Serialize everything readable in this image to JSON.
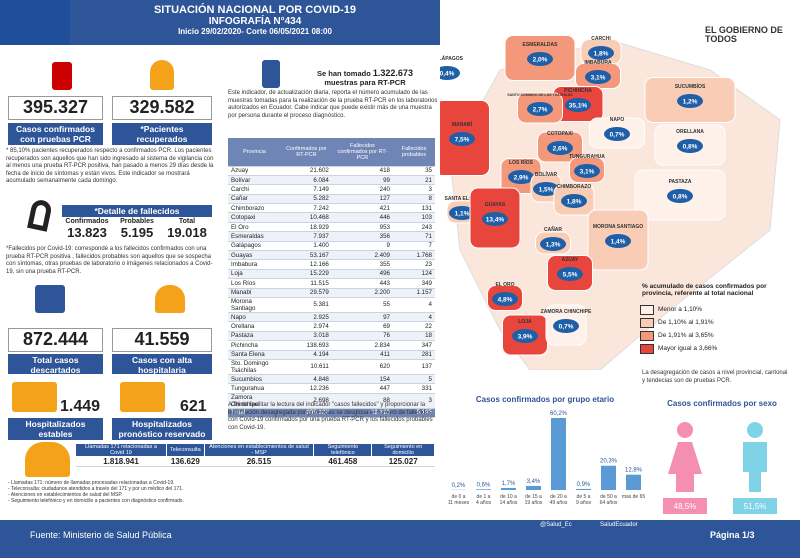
{
  "header": {
    "title": "SITUACIÓN NACIONAL POR  COVID-19",
    "subtitle": "INFOGRAFÍA N°434",
    "period": "Inicio 29/02/2020- Corte 06/05/2021 08:00",
    "logo": "EL GOBIERNO DE TODOS"
  },
  "stats": {
    "confirmed": {
      "value": "395.327",
      "label": "Casos confirmados con pruebas PCR"
    },
    "recovered": {
      "value": "329.582",
      "label": "*Pacientes recuperados"
    },
    "recovered_note": "* 85,10% pacientes recuperados respecto a confirmados PCR. Los pacientes recuperados son aquellos que han sido ingresado al sistema de vigilancia con al menos una prueba RT-PCR positiva, han pasado a menos 29 días desde la fecha de inicio de síntomas y están vivos. Este indicador se mostrará acumulado semanalmente cada domingo.",
    "deaths": {
      "title": "*Detalle de fallecidos",
      "items": [
        {
          "label": "Confirmados",
          "value": "13.823"
        },
        {
          "label": "Probables",
          "value": "5.195"
        },
        {
          "label": "Total",
          "value": "19.018"
        }
      ]
    },
    "deaths_note": "*Fallecidos por Covid-19: corresponde a los fallecidos confirmados con una prueba RT-PCR positiva , fallecidos probables son aquellos que se sospecha con síntomas, otras pruebas de laboratorio o imágenes relacionados a Covid-19, sin una prueba RT-PCR.",
    "discarded": {
      "value": "872.444",
      "label": "Total casos descartados"
    },
    "discharged": {
      "value": "41.559",
      "label": "Casos con alta hospitalaria"
    },
    "stable": {
      "value": "1.449",
      "label": "Hospitalizados estables"
    },
    "reserved": {
      "value": "621",
      "label": "Hospitalizados pronóstico reservado"
    }
  },
  "samples": {
    "prefix": "Se han tomado",
    "value": "1.322.673",
    "suffix": "muestras  para RT-PCR",
    "note": "Este indicador, de actualización diaria, reporta el número acumulado de las muestras tomadas para la realización de la prueba RT-PCR en los laboratorios autorizados en Ecuador. Cabe indicar que puede existir más de una muestra por persona durante el proceso diagnóstico."
  },
  "table": {
    "header": [
      "Provincia",
      "Confirmados por RT-PCR",
      "Fallecidos confirmados por RT-PCR",
      "Fallecidos probables"
    ],
    "rows": [
      [
        "Azuay",
        "21.602",
        "418",
        "35"
      ],
      [
        "Bolívar",
        "6.084",
        "99",
        "21"
      ],
      [
        "Carchi",
        "7.149",
        "240",
        "3"
      ],
      [
        "Cañar",
        "5.282",
        "127",
        "8"
      ],
      [
        "Chimborazo",
        "7.242",
        "421",
        "131"
      ],
      [
        "Cotopaxi",
        "10.468",
        "446",
        "103"
      ],
      [
        "El Oro",
        "18.929",
        "953",
        "243"
      ],
      [
        "Esmeraldas",
        "7.937",
        "356",
        "71"
      ],
      [
        "Galápagos",
        "1.400",
        "9",
        "7"
      ],
      [
        "Guayas",
        "53.167",
        "2.409",
        "1.768"
      ],
      [
        "Imbabura",
        "12.166",
        "355",
        "23"
      ],
      [
        "Loja",
        "15.229",
        "496",
        "124"
      ],
      [
        "Los Ríos",
        "11.515",
        "443",
        "349"
      ],
      [
        "Manabí",
        "29.579",
        "2.200",
        "1.157"
      ],
      [
        "Morona Santiago",
        "5.381",
        "55",
        "4"
      ],
      [
        "Napo",
        "2.925",
        "97",
        "4"
      ],
      [
        "Orellana",
        "2.974",
        "69",
        "22"
      ],
      [
        "Pastaza",
        "3.018",
        "76",
        "18"
      ],
      [
        "Pichincha",
        "138.693",
        "2.834",
        "347"
      ],
      [
        "Santa Elena",
        "4.194",
        "411",
        "281"
      ],
      [
        "Sto. Domingo Tsáchilas",
        "10.611",
        "620",
        "137"
      ],
      [
        "Sucumbíos",
        "4.848",
        "154",
        "5"
      ],
      [
        "Tungurahua",
        "12.236",
        "447",
        "331"
      ],
      [
        "Zamora Chinchipe",
        "2.698",
        "88",
        "3"
      ]
    ],
    "total": [
      "Total",
      "395.327",
      "13.823",
      "5.195"
    ]
  },
  "deaths_info": "A fin de facilitar la lectura del indicador \"casos fallecidos\" y proporcionar la información desagregada por provincias se desglosa el número de fallecidos con Covid-19 confirmados por una prueba RT-PCR y los fallecidos probables con Covid-19.",
  "map": {
    "provinces": [
      {
        "name": "GALÁPAGOS",
        "pct": "0,4%",
        "color": "#fdf1ea"
      },
      {
        "name": "ESMERALDAS",
        "pct": "2,0%",
        "color": "#f3987a"
      },
      {
        "name": "CARCHI",
        "pct": "1,8%",
        "color": "#f9cdb5"
      },
      {
        "name": "IMBABURA",
        "pct": "3,1%",
        "color": "#f3987a"
      },
      {
        "name": "SUCUMBÍOS",
        "pct": "1,2%",
        "color": "#f9cdb5"
      },
      {
        "name": "PICHINCHA",
        "pct": "35,1%",
        "color": "#e8453c"
      },
      {
        "name": "SANTO DOMINGO DE LOS TSÁCHILAS",
        "pct": "2,7%",
        "color": "#f3987a"
      },
      {
        "name": "NAPO",
        "pct": "0,7%",
        "color": "#fdf1ea"
      },
      {
        "name": "ORELLANA",
        "pct": "0,8%",
        "color": "#fdf1ea"
      },
      {
        "name": "MANABÍ",
        "pct": "7,5%",
        "color": "#e8453c"
      },
      {
        "name": "COTOPAXI",
        "pct": "2,6%",
        "color": "#f3987a"
      },
      {
        "name": "LOS RÍOS",
        "pct": "2,9%",
        "color": "#f3987a"
      },
      {
        "name": "TUNGURAHUA",
        "pct": "3,1%",
        "color": "#f3987a"
      },
      {
        "name": "BOLÍVAR",
        "pct": "1,5%",
        "color": "#f9cdb5"
      },
      {
        "name": "CHIMBORAZO",
        "pct": "1,8%",
        "color": "#f9cdb5"
      },
      {
        "name": "PASTAZA",
        "pct": "0,8%",
        "color": "#fdf1ea"
      },
      {
        "name": "SANTA ELENA",
        "pct": "1,1%",
        "color": "#f9cdb5"
      },
      {
        "name": "GUAYAS",
        "pct": "13,4%",
        "color": "#e8453c"
      },
      {
        "name": "CAÑAR",
        "pct": "1,3%",
        "color": "#f9cdb5"
      },
      {
        "name": "MORONA SANTIAGO",
        "pct": "1,4%",
        "color": "#f9cdb5"
      },
      {
        "name": "AZUAY",
        "pct": "5,5%",
        "color": "#e8453c"
      },
      {
        "name": "EL ORO",
        "pct": "4,8%",
        "color": "#e8453c"
      },
      {
        "name": "LOJA",
        "pct": "3,9%",
        "color": "#e8453c"
      },
      {
        "name": "ZAMORA CHINCHIPE",
        "pct": "0,7%",
        "color": "#fdf1ea"
      }
    ],
    "legend_title": "% acumulado de casos confirmados por provincia, referente al total nacional",
    "legend": [
      {
        "label": "Menor a 1,10%",
        "color": "#fdf1ea"
      },
      {
        "label": "De 1,10% al 1,91%",
        "color": "#f9cdb5"
      },
      {
        "label": "De 1,91% al 3,65%",
        "color": "#f3987a"
      },
      {
        "label": "Mayor igual a 3,66%",
        "color": "#e8453c"
      }
    ],
    "note": "La desagregación de casos a nivel provincial, cantonal y tendecias son de  pruebas PCR."
  },
  "chart_data": [
    {
      "type": "bar",
      "title": "Casos confirmados por grupo etario",
      "color": "#5b9bd5",
      "categories": [
        "de 0 a 11 meses",
        "de 1 a 4 años",
        "de 10 a 14 años",
        "de 15 a 19 años",
        "de 20 a 49 años",
        "de 5 a 9 años",
        "de 50 a 64 años",
        "mas de 65"
      ],
      "values": [
        0.2,
        0.6,
        1.7,
        3.4,
        60.2,
        0.9,
        20.3,
        12.8
      ],
      "value_labels": [
        "0,2%",
        "0,6%",
        "1,7%",
        "3,4%",
        "60,2%",
        "0,9%",
        "20,3%",
        "12,8%"
      ]
    },
    {
      "type": "pictogram",
      "title": "Casos confirmados por sexo",
      "categories": [
        null,
        null
      ],
      "colors": [
        "#f48fb1",
        "#7fd3e6"
      ],
      "values": [
        48.5,
        51.5
      ],
      "value_labels": [
        "48,5%",
        "51,5%"
      ]
    }
  ],
  "services": {
    "items": [
      {
        "label": "Llamadas 171 relacionadas a Covid 19",
        "value": "1.818.941"
      },
      {
        "label": "Teleconsulta",
        "value": "136.629"
      },
      {
        "label": "Atenciones en establecimientos de salud - MSP",
        "value": "26.515"
      },
      {
        "label": "Seguimiento telefónico",
        "value": "461.458"
      },
      {
        "label": "Seguimiento en domicilio",
        "value": "125.027"
      }
    ],
    "notes": [
      "- Llamadas 171: número de llamadas procesadas relacionadas a Covid-19.",
      "- Teleconsulta: ciudadanos atendidos a través del 171 y por un médico del 171.",
      "- Atenciones en establecimientos de salud del MSP.",
      "- Seguimiento telefónico y en domicilio a pacientes con diagnóstico confirmado."
    ]
  },
  "footer": {
    "source": "Fuente: Ministerio de Salud Pública",
    "twitter": "@Salud_Ec",
    "facebook": "SaludEcuador",
    "page": "Página 1/3"
  }
}
